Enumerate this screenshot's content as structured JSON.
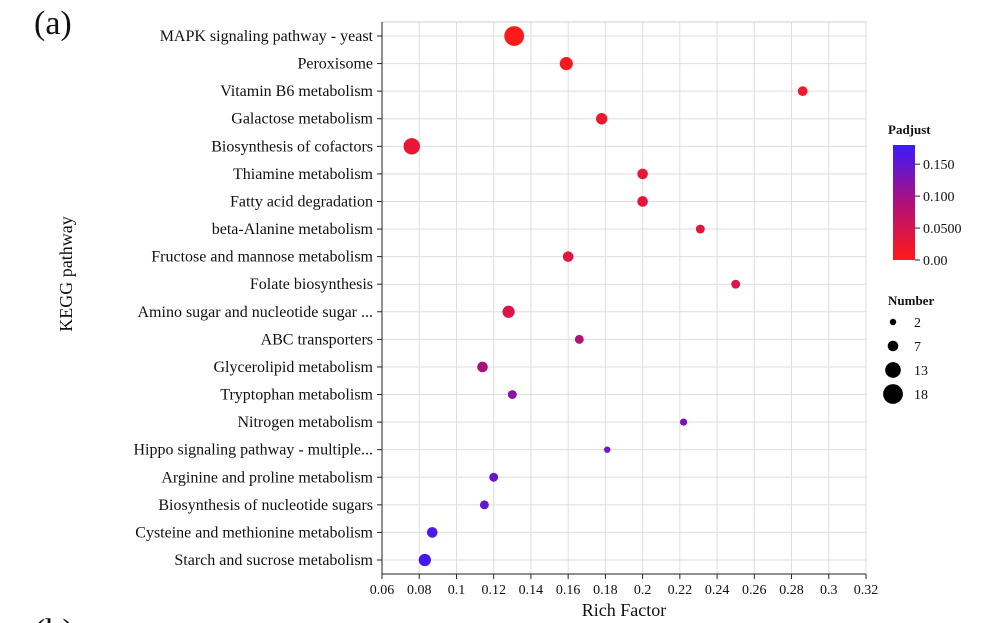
{
  "figure": {
    "panel_label": "(a)",
    "next_panel_fragment": "(b)"
  },
  "chart_data": {
    "type": "scatter",
    "title": "",
    "xlabel": "Rich Factor",
    "ylabel": "KEGG pathway",
    "xlim": [
      0.06,
      0.32
    ],
    "xticks": [
      0.06,
      0.08,
      0.1,
      0.12,
      0.14,
      0.16,
      0.18,
      0.2,
      0.22,
      0.24,
      0.26,
      0.28,
      0.3,
      0.32
    ],
    "xtick_labels": [
      "0.06",
      "0.08",
      "0.1",
      "0.12",
      "0.14",
      "0.16",
      "0.18",
      "0.2",
      "0.22",
      "0.24",
      "0.26",
      "0.28",
      "0.3",
      "0.32"
    ],
    "grid": true,
    "legend_position": "right",
    "color_legend": {
      "title": "Padjust",
      "min": 0,
      "max": 0.18,
      "ticks": [
        0.0,
        0.05,
        0.1,
        0.15
      ],
      "tick_labels": [
        "0.00",
        "0.0500",
        "0.100",
        "0.150"
      ],
      "low_color": "#ff1a1a",
      "high_color": "#3a1aff"
    },
    "size_legend": {
      "title": "Number",
      "values": [
        2,
        7,
        13,
        18
      ],
      "labels": [
        "2",
        "7",
        "13",
        "18"
      ]
    },
    "points": [
      {
        "pathway": "MAPK signaling pathway - yeast",
        "rich_factor": 0.131,
        "number": 18,
        "padjust": 0.001
      },
      {
        "pathway": "Peroxisome",
        "rich_factor": 0.159,
        "number": 10,
        "padjust": 0.005
      },
      {
        "pathway": "Vitamin B6 metabolism",
        "rich_factor": 0.286,
        "number": 6,
        "padjust": 0.012
      },
      {
        "pathway": "Galactose metabolism",
        "rich_factor": 0.178,
        "number": 8,
        "padjust": 0.02
      },
      {
        "pathway": "Biosynthesis of cofactors",
        "rich_factor": 0.076,
        "number": 14,
        "padjust": 0.025
      },
      {
        "pathway": "Thiamine metabolism",
        "rich_factor": 0.2,
        "number": 7,
        "padjust": 0.03
      },
      {
        "pathway": "Fatty acid degradation",
        "rich_factor": 0.2,
        "number": 7,
        "padjust": 0.032
      },
      {
        "pathway": "beta-Alanine metabolism",
        "rich_factor": 0.231,
        "number": 5,
        "padjust": 0.035
      },
      {
        "pathway": "Fructose and mannose metabolism",
        "rich_factor": 0.16,
        "number": 7,
        "padjust": 0.038
      },
      {
        "pathway": "Folate biosynthesis",
        "rich_factor": 0.25,
        "number": 5,
        "padjust": 0.04
      },
      {
        "pathway": "Amino sugar and nucleotide sugar ...",
        "rich_factor": 0.128,
        "number": 9,
        "padjust": 0.042
      },
      {
        "pathway": "ABC transporters",
        "rich_factor": 0.166,
        "number": 5,
        "padjust": 0.085
      },
      {
        "pathway": "Glycerolipid metabolism",
        "rich_factor": 0.114,
        "number": 7,
        "padjust": 0.095
      },
      {
        "pathway": "Tryptophan metabolism",
        "rich_factor": 0.13,
        "number": 5,
        "padjust": 0.12
      },
      {
        "pathway": "Nitrogen metabolism",
        "rich_factor": 0.222,
        "number": 3,
        "padjust": 0.13
      },
      {
        "pathway": "Hippo signaling pathway - multiple...",
        "rich_factor": 0.181,
        "number": 2,
        "padjust": 0.14
      },
      {
        "pathway": "Arginine and proline metabolism",
        "rich_factor": 0.12,
        "number": 5,
        "padjust": 0.145
      },
      {
        "pathway": "Biosynthesis of nucleotide sugars",
        "rich_factor": 0.115,
        "number": 5,
        "padjust": 0.15
      },
      {
        "pathway": "Cysteine and methionine metabolism",
        "rich_factor": 0.087,
        "number": 7,
        "padjust": 0.165
      },
      {
        "pathway": "Starch and sucrose metabolism",
        "rich_factor": 0.083,
        "number": 9,
        "padjust": 0.175
      }
    ]
  }
}
